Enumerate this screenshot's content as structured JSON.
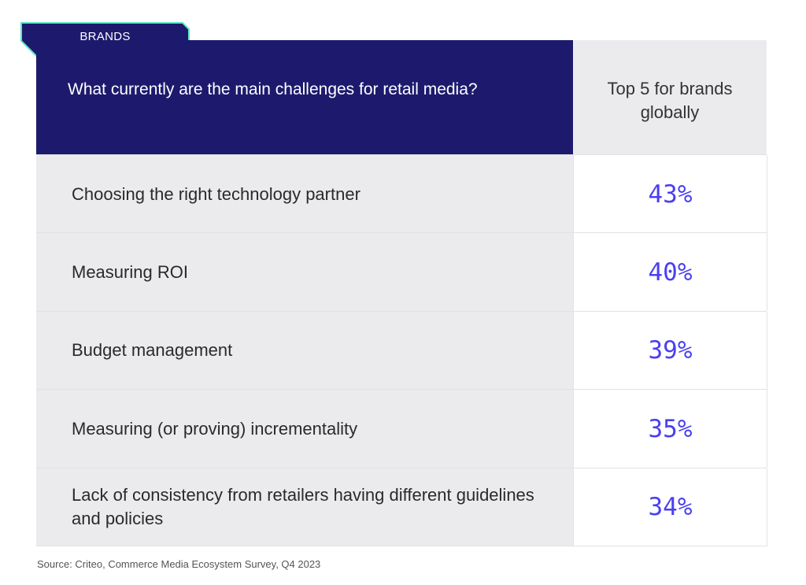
{
  "tag": {
    "label": "BRANDS",
    "fill": "#1d1a6e",
    "border": "#5ee7c4"
  },
  "header": {
    "question": "What currently are the main challenges for retail media?",
    "column": "Top 5 for brands globally"
  },
  "chart_data": {
    "type": "table",
    "title": "What currently are the main challenges for retail media?",
    "columns": [
      "What currently are the main challenges for retail media?",
      "Top 5 for brands globally"
    ],
    "categories": [
      "Choosing the right technology partner",
      "Measuring ROI",
      "Budget management",
      "Measuring (or proving) incrementality",
      "Lack of consistency from retailers having different guidelines and policies"
    ],
    "values": [
      43,
      40,
      39,
      35,
      34
    ],
    "value_labels": [
      "43%",
      "40%",
      "39%",
      "35%",
      "34%"
    ],
    "unit": "%"
  },
  "source": "Source: Criteo, Commerce Media Ecosystem Survey, Q4 2023",
  "colors": {
    "header_bg": "#1d1a6e",
    "value_text": "#4b3ff0",
    "row_bg": "#ebebee"
  }
}
